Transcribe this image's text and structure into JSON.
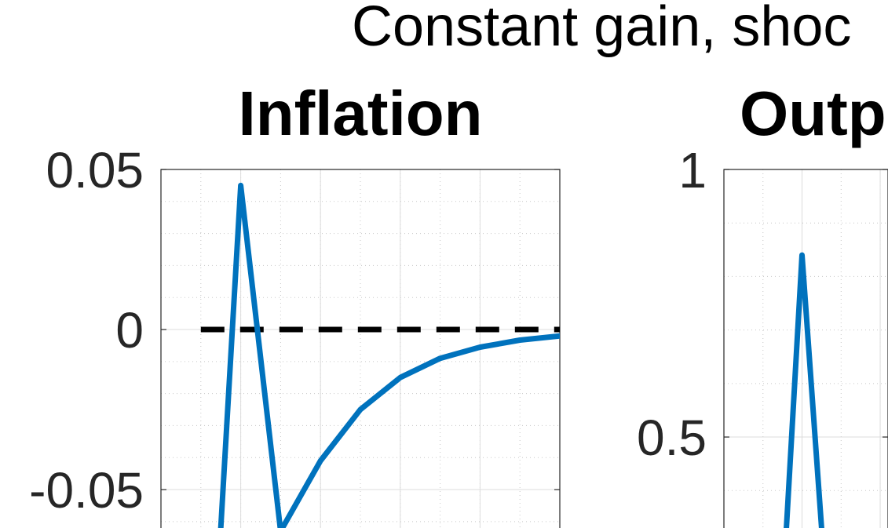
{
  "figure": {
    "title": "Constant gain, shoc"
  },
  "colors": {
    "series": "#0072BD",
    "reference": "#000000"
  },
  "chart_data": [
    {
      "type": "line",
      "title": "Inflation",
      "xlabel": "",
      "ylabel": "",
      "xlim": [
        0,
        10
      ],
      "ylim": [
        -0.062,
        0.05
      ],
      "yticks": [
        -0.05,
        0,
        0.05
      ],
      "yticklabels": [
        "-0.05",
        "0",
        "0.05"
      ],
      "grid": true,
      "minor_grid": true,
      "series": [
        {
          "x": [
            1.5,
            2,
            3,
            4,
            5,
            6,
            7,
            8,
            9,
            10
          ],
          "values": [
            -0.062,
            0.045,
            -0.063,
            -0.041,
            -0.025,
            -0.015,
            -0.009,
            -0.0055,
            -0.0033,
            -0.002
          ]
        }
      ],
      "reference_line": {
        "y": 0,
        "x_from": 1,
        "x_to": 10,
        "style": "dashed"
      }
    },
    {
      "type": "line",
      "title": "Outp",
      "xlabel": "",
      "ylabel": "",
      "xlim": [
        0,
        4.2
      ],
      "ylim": [
        0.33,
        1
      ],
      "yticks": [
        0.5,
        1
      ],
      "yticklabels": [
        "0.5",
        "1"
      ],
      "grid": true,
      "minor_grid": true,
      "series": [
        {
          "x": [
            1.6,
            2,
            2.5
          ],
          "values": [
            0.33,
            0.84,
            0.33
          ]
        }
      ]
    }
  ]
}
